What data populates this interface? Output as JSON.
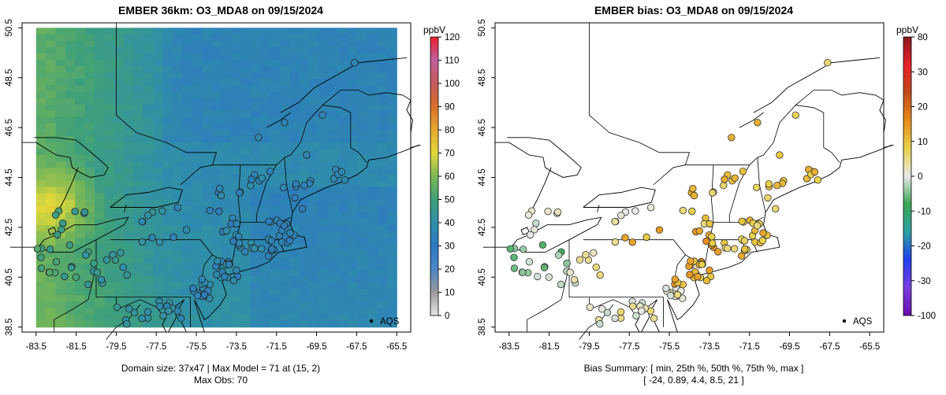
{
  "left": {
    "title": "EMBER 36km: O3_MDA8 on 09/15/2024",
    "footer_line1": "Domain size: 37x47 | Max Model = 71 at (15, 2)",
    "footer_line2": "Max Obs: 70",
    "colorbar": {
      "unit": "ppbV",
      "ticks": [
        "0",
        "10",
        "20",
        "30",
        "40",
        "50",
        "60",
        "70",
        "80",
        "90",
        "100",
        "110",
        "120"
      ],
      "stops": [
        "#e6e6e6",
        "#9a9a9a",
        "#4f86c8",
        "#2d78c0",
        "#2f8fa8",
        "#3fa07a",
        "#7cb856",
        "#e0d93a",
        "#e6a830",
        "#d9702a",
        "#c45a5a",
        "#c2609e",
        "#e8202a"
      ]
    },
    "legend_label": "AQS"
  },
  "right": {
    "title": "EMBER bias: O3_MDA8 on 09/15/2024",
    "footer_line1": "Bias Summary: [ min, 25th %, 50th %, 75th %, max ]",
    "footer_line2": "[ -24,   0.89,   4.4,   8.5,   21 ]",
    "colorbar": {
      "unit": "ppbV",
      "ticks": [
        "-100",
        "-30",
        "-20",
        "-10",
        "0",
        "10",
        "20",
        "30",
        "80"
      ],
      "stops": [
        "#6a0dad",
        "#7a3ee0",
        "#2040f0",
        "#2ea0a0",
        "#3aa858",
        "#e8e8e8",
        "#e8d24a",
        "#e88a1a",
        "#c24a1a",
        "#e8202a",
        "#8a1a1a"
      ]
    },
    "legend_label": "AQS"
  },
  "axes": {
    "x_ticks": [
      "-83.5",
      "-81.5",
      "-79.5",
      "-77.5",
      "-75.5",
      "-73.5",
      "-71.5",
      "-69.5",
      "-67.5",
      "-65.5"
    ],
    "y_ticks": [
      "38.5",
      "40.5",
      "42.5",
      "44.5",
      "46.5",
      "48.5",
      "50.5"
    ]
  }
}
